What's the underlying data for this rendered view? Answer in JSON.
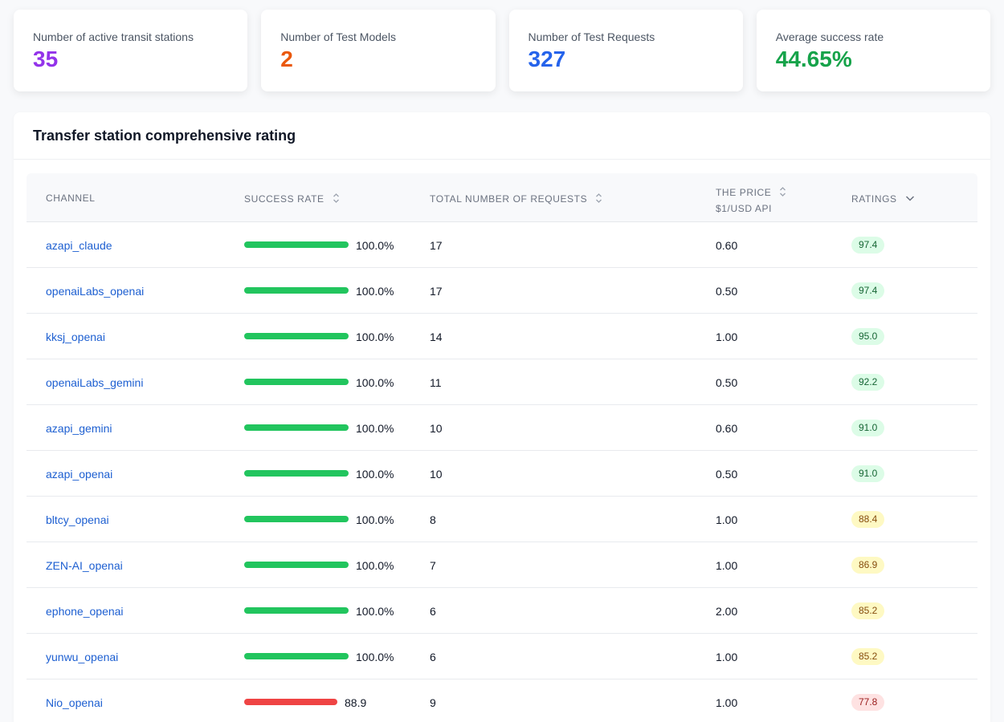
{
  "stats": [
    {
      "label": "Number of active transit stations",
      "value": "35",
      "color": "#9333ea"
    },
    {
      "label": "Number of Test Models",
      "value": "2",
      "color": "#ea580c"
    },
    {
      "label": "Number of Test Requests",
      "value": "327",
      "color": "#2563eb"
    },
    {
      "label": "Average success rate",
      "value": "44.65%",
      "color": "#16a34a"
    }
  ],
  "panel": {
    "title": "Transfer station comprehensive rating"
  },
  "table": {
    "headers": {
      "channel": "CHANNEL",
      "success_rate": "SUCCESS RATE",
      "total_requests": "TOTAL NUMBER OF REQUESTS",
      "price_line1": "THE PRICE",
      "price_line2": "$1/USD API",
      "ratings": "RATINGS"
    },
    "sort_icons": {
      "success_rate": "sort-icon",
      "total_requests": "sort-icon",
      "price": "sort-icon",
      "ratings": "sort-desc-icon"
    },
    "rows": [
      {
        "channel": "azapi_claude",
        "rate": "100.0%",
        "rate_value": 1.0,
        "requests": "17",
        "price": "0.60",
        "rating": "97.4",
        "rating_level": "high"
      },
      {
        "channel": "openaiLabs_openai",
        "rate": "100.0%",
        "rate_value": 1.0,
        "requests": "17",
        "price": "0.50",
        "rating": "97.4",
        "rating_level": "high"
      },
      {
        "channel": "kksj_openai",
        "rate": "100.0%",
        "rate_value": 1.0,
        "requests": "14",
        "price": "1.00",
        "rating": "95.0",
        "rating_level": "high"
      },
      {
        "channel": "openaiLabs_gemini",
        "rate": "100.0%",
        "rate_value": 1.0,
        "requests": "11",
        "price": "0.50",
        "rating": "92.2",
        "rating_level": "high"
      },
      {
        "channel": "azapi_gemini",
        "rate": "100.0%",
        "rate_value": 1.0,
        "requests": "10",
        "price": "0.60",
        "rating": "91.0",
        "rating_level": "high"
      },
      {
        "channel": "azapi_openai",
        "rate": "100.0%",
        "rate_value": 1.0,
        "requests": "10",
        "price": "0.50",
        "rating": "91.0",
        "rating_level": "high"
      },
      {
        "channel": "bltcy_openai",
        "rate": "100.0%",
        "rate_value": 1.0,
        "requests": "8",
        "price": "1.00",
        "rating": "88.4",
        "rating_level": "medium"
      },
      {
        "channel": "ZEN-AI_openai",
        "rate": "100.0%",
        "rate_value": 1.0,
        "requests": "7",
        "price": "1.00",
        "rating": "86.9",
        "rating_level": "medium"
      },
      {
        "channel": "ephone_openai",
        "rate": "100.0%",
        "rate_value": 1.0,
        "requests": "6",
        "price": "2.00",
        "rating": "85.2",
        "rating_level": "medium"
      },
      {
        "channel": "yunwu_openai",
        "rate": "100.0%",
        "rate_value": 1.0,
        "requests": "6",
        "price": "1.00",
        "rating": "85.2",
        "rating_level": "medium"
      },
      {
        "channel": "Nio_openai",
        "rate": "88.9",
        "rate_value": 0.889,
        "requests": "9",
        "price": "1.00",
        "rating": "77.8",
        "rating_level": "low"
      }
    ]
  },
  "colors": {
    "bar_good": "#22c55e",
    "bar_bad": "#ef4444",
    "badge_high_bg": "#dcfce7",
    "badge_high_fg": "#166534",
    "badge_medium_bg": "#fef9c3",
    "badge_medium_fg": "#854d0e",
    "badge_low_bg": "#fee2e2",
    "badge_low_fg": "#991b1b"
  }
}
